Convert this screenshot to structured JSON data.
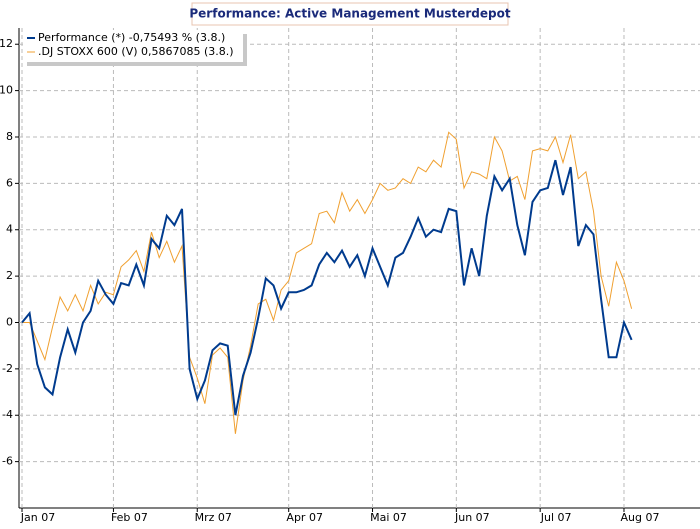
{
  "chart_data": {
    "type": "line",
    "title": "Performance: Active Management Musterdepot",
    "categories": [
      "Jan 07",
      null,
      null,
      null,
      null,
      null,
      null,
      null,
      null,
      null,
      null,
      null,
      "Feb 07",
      null,
      null,
      null,
      null,
      null,
      null,
      null,
      null,
      null,
      null,
      "Mrz 07",
      null,
      null,
      null,
      null,
      null,
      null,
      null,
      null,
      null,
      null,
      null,
      "Apr 07",
      null,
      null,
      null,
      null,
      null,
      null,
      null,
      null,
      null,
      null,
      "Mai 07",
      null,
      null,
      null,
      null,
      null,
      null,
      null,
      null,
      null,
      null,
      "Jun 07",
      null,
      null,
      null,
      null,
      null,
      null,
      null,
      null,
      null,
      null,
      "Jul 07",
      null,
      null,
      null,
      null,
      null,
      null,
      null,
      null,
      null,
      null,
      "Aug 07",
      null
    ],
    "series": [
      {
        "name": "Performance (*) -0,75493 % (3.8.)",
        "color": "#003b8e",
        "values": [
          0,
          0.4,
          -1.8,
          -2.8,
          -3.1,
          -1.5,
          -0.3,
          -1.3,
          0,
          0.5,
          1.8,
          1.2,
          0.8,
          1.7,
          1.6,
          2.5,
          1.6,
          3.6,
          3.2,
          4.6,
          4.2,
          4.9,
          -2.0,
          -3.3,
          -2.5,
          -1.2,
          -0.9,
          -1.0,
          -4.0,
          -2.3,
          -1.3,
          0.2,
          1.9,
          1.6,
          0.6,
          1.3,
          1.3,
          1.4,
          1.6,
          2.5,
          3.0,
          2.6,
          3.1,
          2.4,
          2.9,
          2.0,
          3.2,
          2.4,
          1.6,
          2.8,
          3.0,
          3.7,
          4.5,
          3.7,
          4.0,
          3.9,
          4.9,
          4.8,
          1.6,
          3.2,
          2.0,
          4.6,
          6.3,
          5.7,
          6.2,
          4.2,
          2.9,
          5.2,
          5.7,
          5.8,
          7.0,
          5.5,
          6.7,
          3.3,
          4.2,
          3.8,
          1.0,
          -1.5,
          -1.5,
          0.0,
          -0.75
        ]
      },
      {
        "name": ".DJ STOXX 600 (V) 0,5867085 (3.8.)",
        "color": "#f0a030",
        "values": [
          0,
          0,
          -0.8,
          -1.6,
          -0.2,
          1.1,
          0.5,
          1.2,
          0.5,
          1.6,
          0.8,
          1.3,
          1.2,
          2.4,
          2.7,
          3.1,
          2.2,
          3.9,
          2.8,
          3.5,
          2.6,
          3.3,
          -1.5,
          -2.4,
          -3.5,
          -1.4,
          -1.1,
          -1.5,
          -4.8,
          -2.5,
          -1.0,
          0.8,
          1.0,
          0.1,
          1.4,
          1.8,
          3.0,
          3.2,
          3.4,
          4.7,
          4.8,
          4.3,
          5.6,
          4.8,
          5.3,
          4.7,
          5.3,
          6.0,
          5.7,
          5.8,
          6.2,
          6.0,
          6.7,
          6.5,
          7.0,
          6.7,
          8.2,
          7.9,
          5.8,
          6.5,
          6.4,
          6.2,
          8.0,
          7.4,
          6.1,
          6.3,
          5.3,
          7.4,
          7.5,
          7.4,
          8.0,
          6.9,
          8.1,
          6.2,
          6.5,
          4.8,
          2.0,
          0.7,
          2.6,
          1.8,
          0.59
        ]
      }
    ],
    "ylim": [
      -8,
      12.7
    ],
    "yticks": [
      -6,
      -4,
      -2,
      0,
      2,
      4,
      6,
      8,
      10,
      12
    ],
    "grid": true,
    "legend": "top-left"
  }
}
